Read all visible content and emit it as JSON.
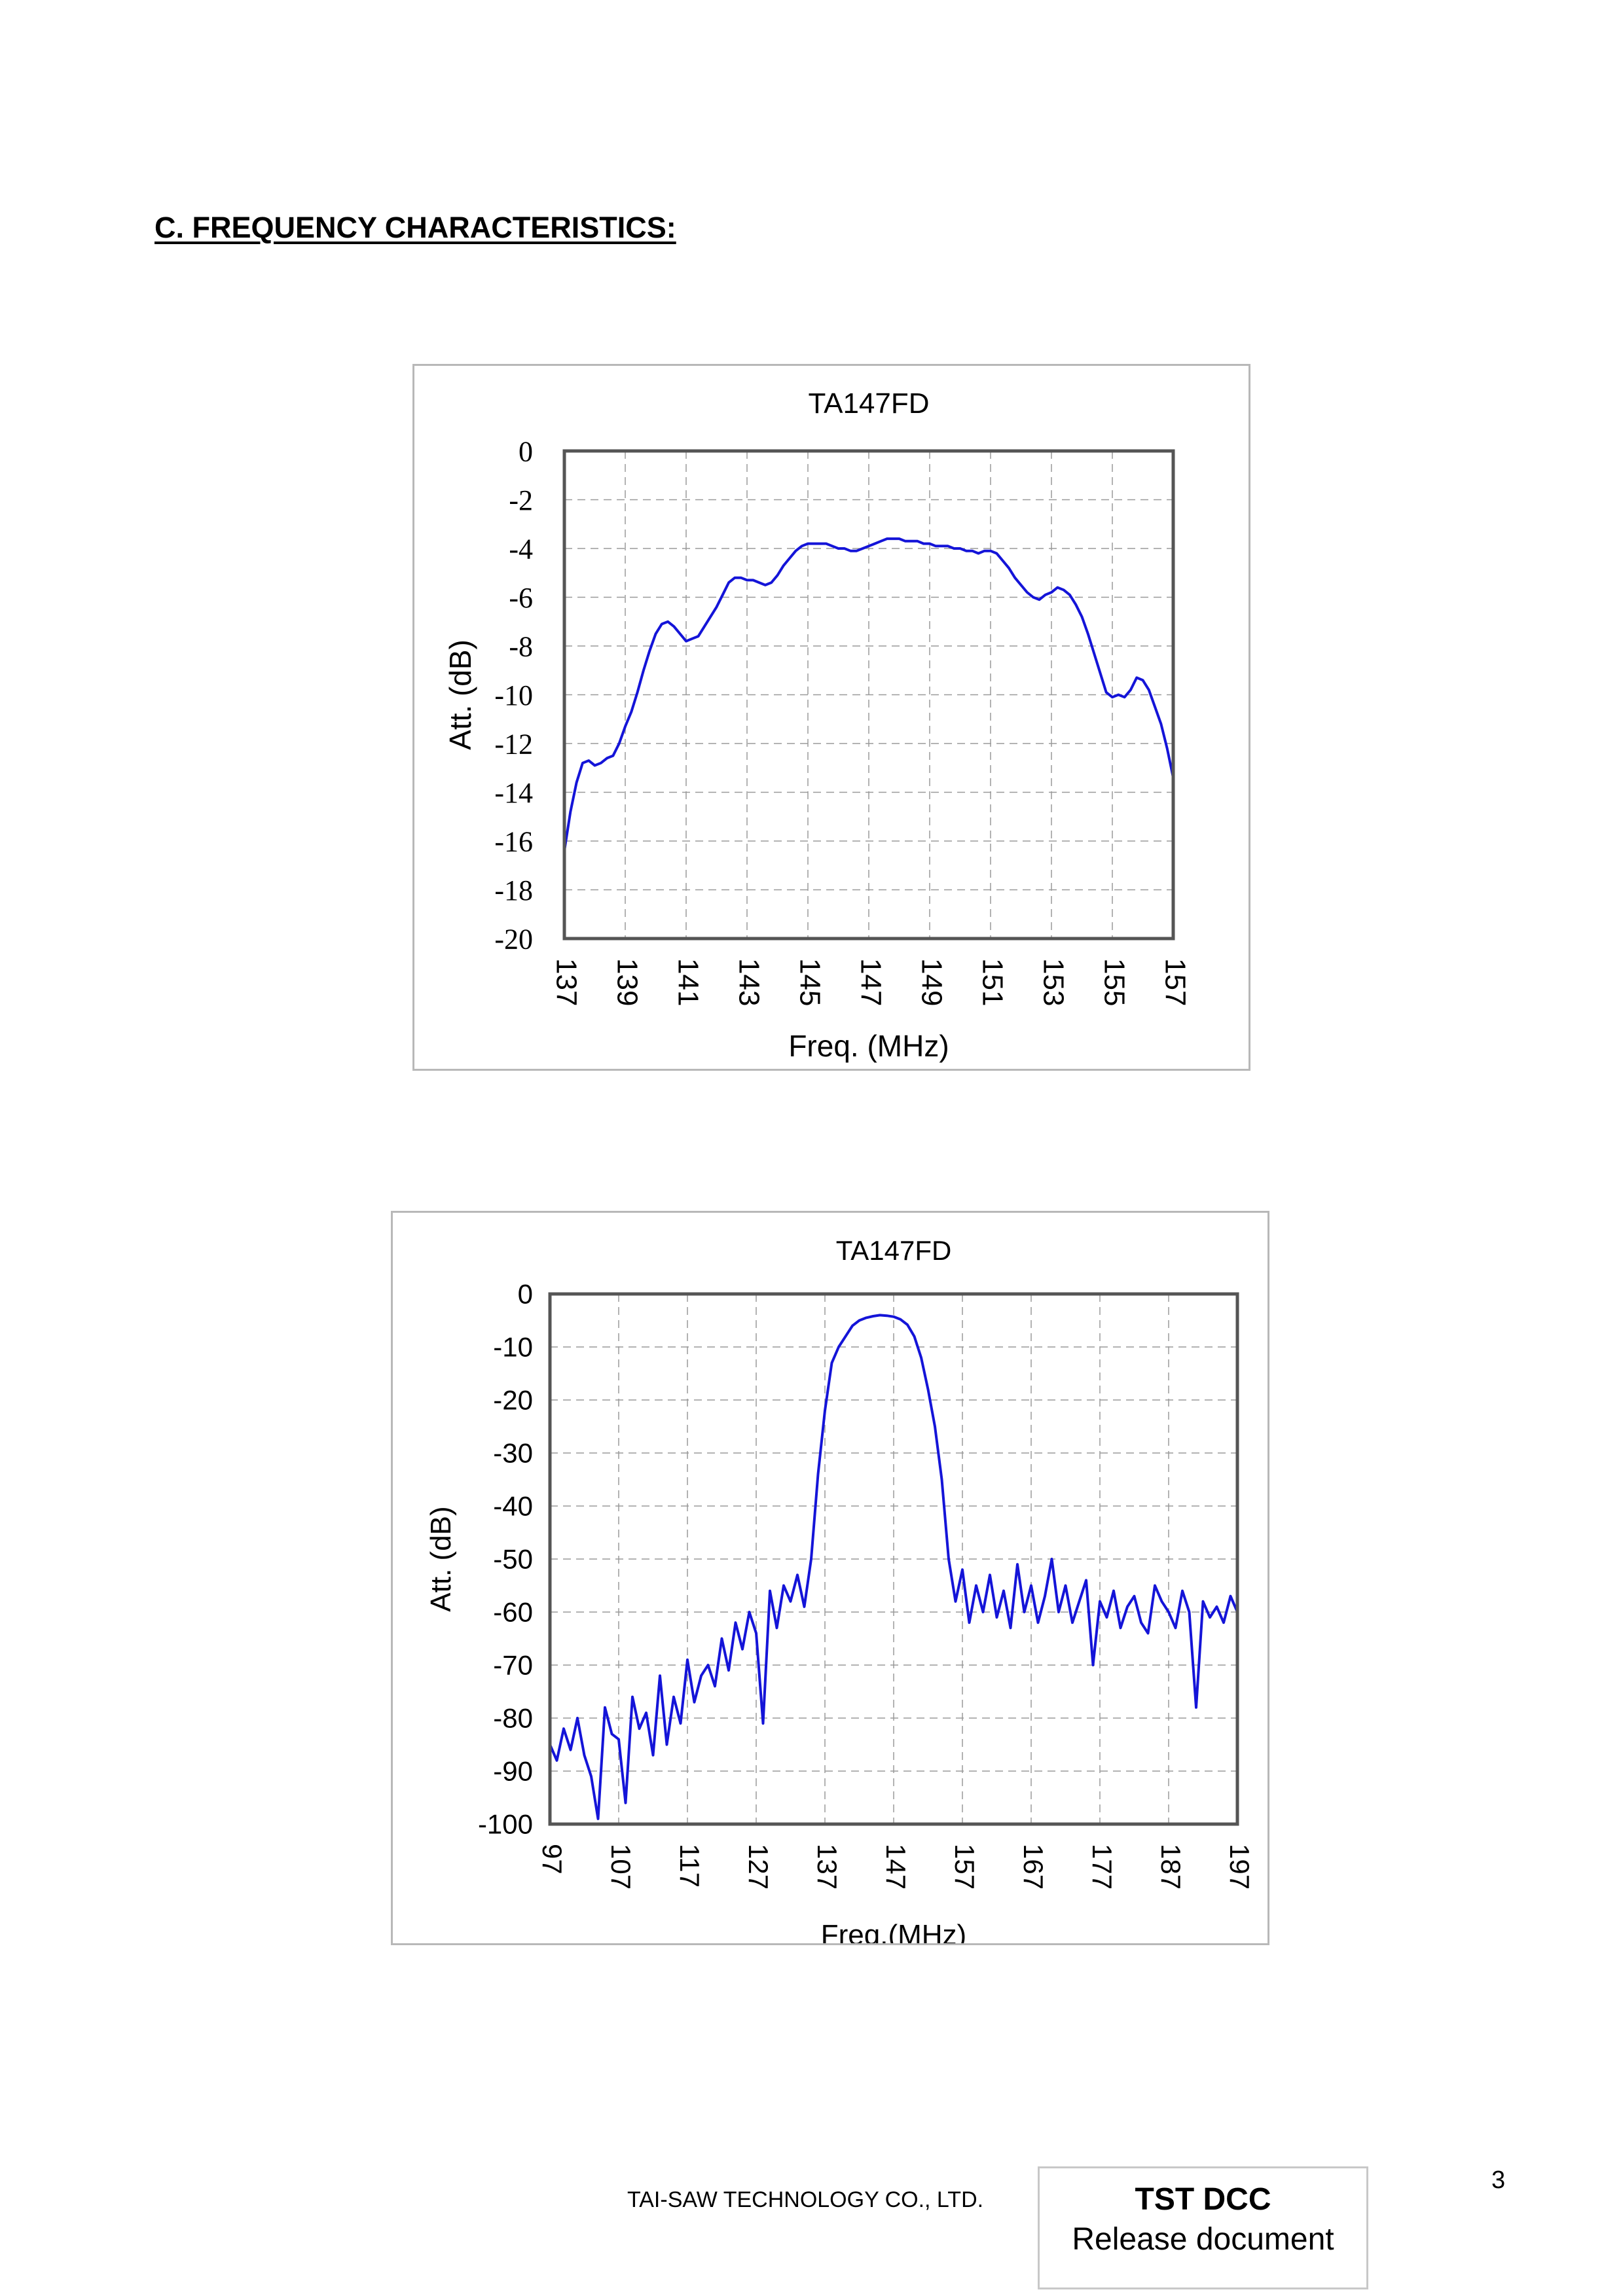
{
  "page": {
    "section_title": "C. FREQUENCY CHARACTERISTICS:",
    "footer_company": "TAI-SAW TECHNOLOGY CO., LTD.",
    "release_title": "TST DCC",
    "release_subtitle": "Release document",
    "page_number": "3"
  },
  "style": {
    "line_color": "#1414d8",
    "frame_color": "#555555",
    "grid_color": "#9a9a9a"
  },
  "chart_data": [
    {
      "type": "line",
      "title": "TA147FD",
      "xlabel": "Freq. (MHz)",
      "ylabel": "Att. (dB)",
      "xlim": [
        137,
        157
      ],
      "ylim": [
        -20,
        0
      ],
      "x_ticks": [
        "137",
        "139",
        "141",
        "143",
        "145",
        "147",
        "149",
        "151",
        "153",
        "155",
        "157"
      ],
      "y_ticks": [
        "0",
        "-2",
        "-4",
        "-6",
        "-8",
        "-10",
        "-12",
        "-14",
        "-16",
        "-18",
        "-20"
      ],
      "grid": true,
      "series": [
        {
          "x": [
            137.0,
            137.2,
            137.4,
            137.6,
            137.8,
            138.0,
            138.2,
            138.4,
            138.6,
            138.8,
            139.0,
            139.2,
            139.4,
            139.6,
            139.8,
            140.0,
            140.2,
            140.4,
            140.6,
            140.8,
            141.0,
            141.2,
            141.4,
            141.6,
            141.8,
            142.0,
            142.2,
            142.4,
            142.6,
            142.8,
            143.0,
            143.2,
            143.4,
            143.6,
            143.8,
            144.0,
            144.2,
            144.4,
            144.6,
            144.8,
            145.0,
            145.2,
            145.4,
            145.6,
            145.8,
            146.0,
            146.2,
            146.4,
            146.6,
            146.8,
            147.0,
            147.2,
            147.4,
            147.6,
            147.8,
            148.0,
            148.2,
            148.4,
            148.6,
            148.8,
            149.0,
            149.2,
            149.4,
            149.6,
            149.8,
            150.0,
            150.2,
            150.4,
            150.6,
            150.8,
            151.0,
            151.2,
            151.4,
            151.6,
            151.8,
            152.0,
            152.2,
            152.4,
            152.6,
            152.8,
            153.0,
            153.2,
            153.4,
            153.6,
            153.8,
            154.0,
            154.2,
            154.4,
            154.6,
            154.8,
            155.0,
            155.2,
            155.4,
            155.6,
            155.8,
            156.0,
            156.2,
            156.4,
            156.6,
            156.8,
            157.0
          ],
          "y": [
            -16.4,
            -14.8,
            -13.6,
            -12.8,
            -12.7,
            -12.9,
            -12.8,
            -12.6,
            -12.5,
            -12.0,
            -11.3,
            -10.7,
            -9.9,
            -9.0,
            -8.2,
            -7.5,
            -7.1,
            -7.0,
            -7.2,
            -7.5,
            -7.8,
            -7.7,
            -7.6,
            -7.2,
            -6.8,
            -6.4,
            -5.9,
            -5.4,
            -5.2,
            -5.2,
            -5.3,
            -5.3,
            -5.4,
            -5.5,
            -5.4,
            -5.1,
            -4.7,
            -4.4,
            -4.1,
            -3.9,
            -3.8,
            -3.8,
            -3.8,
            -3.8,
            -3.9,
            -4.0,
            -4.0,
            -4.1,
            -4.1,
            -4.0,
            -3.9,
            -3.8,
            -3.7,
            -3.6,
            -3.6,
            -3.6,
            -3.7,
            -3.7,
            -3.7,
            -3.8,
            -3.8,
            -3.9,
            -3.9,
            -3.9,
            -4.0,
            -4.0,
            -4.1,
            -4.1,
            -4.2,
            -4.1,
            -4.1,
            -4.2,
            -4.5,
            -4.8,
            -5.2,
            -5.5,
            -5.8,
            -6.0,
            -6.1,
            -5.9,
            -5.8,
            -5.6,
            -5.7,
            -5.9,
            -6.3,
            -6.8,
            -7.5,
            -8.3,
            -9.1,
            -9.9,
            -10.1,
            -10.0,
            -10.1,
            -9.8,
            -9.3,
            -9.4,
            -9.8,
            -10.5,
            -11.2,
            -12.2,
            -13.4
          ]
        }
      ]
    },
    {
      "type": "line",
      "title": "TA147FD",
      "xlabel": "Freq.(MHz)",
      "ylabel": "Att. (dB)",
      "xlim": [
        97,
        197
      ],
      "ylim": [
        -100,
        0
      ],
      "x_ticks": [
        "97",
        "107",
        "117",
        "127",
        "137",
        "147",
        "157",
        "167",
        "177",
        "187",
        "197"
      ],
      "y_ticks": [
        "0",
        "-10",
        "-20",
        "-30",
        "-40",
        "-50",
        "-60",
        "-70",
        "-80",
        "-90",
        "-100"
      ],
      "grid": true,
      "series": [
        {
          "x": [
            97,
            98,
            99,
            100,
            101,
            102,
            103,
            104,
            105,
            106,
            107,
            108,
            109,
            110,
            111,
            112,
            113,
            114,
            115,
            116,
            117,
            118,
            119,
            120,
            121,
            122,
            123,
            124,
            125,
            126,
            127,
            128,
            129,
            130,
            131,
            132,
            133,
            134,
            135,
            136,
            137,
            138,
            139,
            140,
            141,
            142,
            143,
            144,
            145,
            146,
            147,
            148,
            149,
            150,
            151,
            152,
            153,
            154,
            155,
            156,
            157,
            158,
            159,
            160,
            161,
            162,
            163,
            164,
            165,
            166,
            167,
            168,
            169,
            170,
            171,
            172,
            173,
            174,
            175,
            176,
            177,
            178,
            179,
            180,
            181,
            182,
            183,
            184,
            185,
            186,
            187,
            188,
            189,
            190,
            191,
            192,
            193,
            194,
            195,
            196,
            197
          ],
          "y": [
            -85,
            -88,
            -82,
            -86,
            -80,
            -87,
            -91,
            -99,
            -78,
            -83,
            -84,
            -96,
            -76,
            -82,
            -79,
            -87,
            -72,
            -85,
            -76,
            -81,
            -69,
            -77,
            -72,
            -70,
            -74,
            -65,
            -71,
            -62,
            -67,
            -60,
            -64,
            -81,
            -56,
            -63,
            -55,
            -58,
            -53,
            -59,
            -50,
            -34,
            -22,
            -13,
            -10,
            -8,
            -6,
            -5,
            -4.5,
            -4.2,
            -4,
            -4.1,
            -4.3,
            -4.8,
            -5.8,
            -8,
            -12,
            -18,
            -25,
            -35,
            -50,
            -58,
            -52,
            -62,
            -55,
            -60,
            -53,
            -61,
            -56,
            -63,
            -51,
            -60,
            -55,
            -62,
            -57,
            -50,
            -60,
            -55,
            -62,
            -58,
            -54,
            -70,
            -58,
            -61,
            -56,
            -63,
            -59,
            -57,
            -62,
            -64,
            -55,
            -58,
            -60,
            -63,
            -56,
            -60,
            -78,
            -58,
            -61,
            -59,
            -62,
            -57,
            -60
          ]
        }
      ]
    }
  ]
}
